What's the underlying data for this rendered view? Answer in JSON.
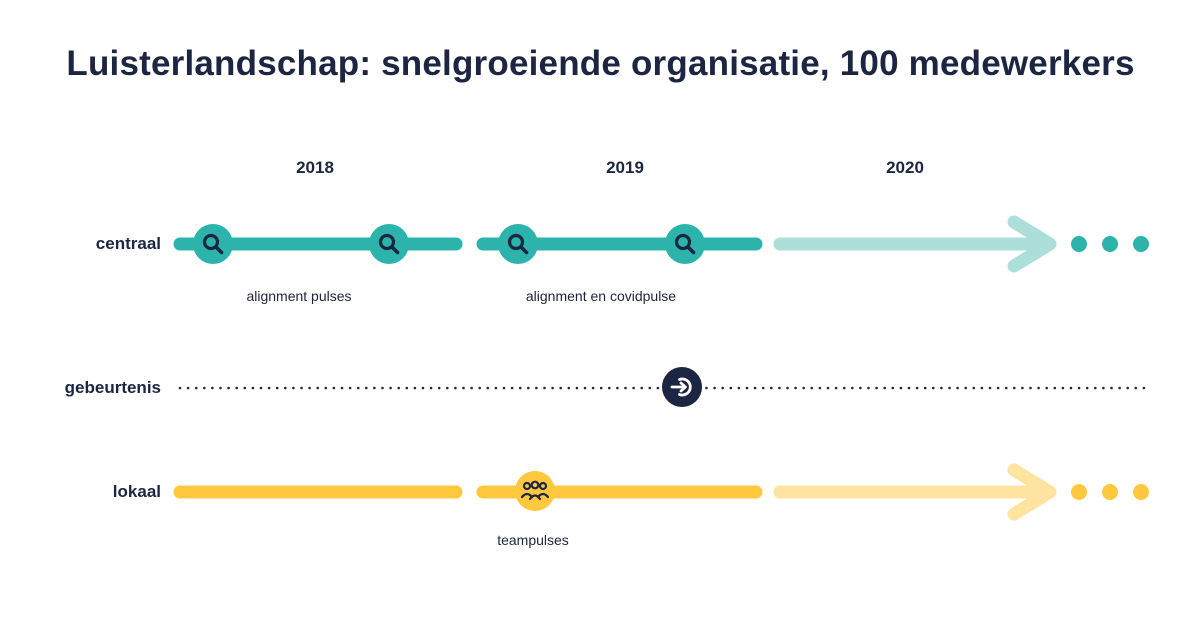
{
  "title": "Luisterlandschap: snelgroeiende organisatie, 100 medewerkers",
  "years": [
    "2018",
    "2019",
    "2020"
  ],
  "rows": {
    "centraal": {
      "label": "centraal",
      "color": "#2bb3ac",
      "light_color": "#acdfd9",
      "captions": [
        "alignment pulses",
        "alignment en covidpulse"
      ],
      "icons": [
        "search-icon",
        "search-icon",
        "search-icon",
        "search-icon"
      ]
    },
    "gebeurtenis": {
      "label": "gebeurtenis",
      "color": "#1c2541",
      "icon": "login-arrow-icon"
    },
    "lokaal": {
      "label": "lokaal",
      "color": "#ffc83d",
      "light_color": "#ffe4a0",
      "captions": [
        "teampulses"
      ],
      "icon": "team-icon"
    }
  }
}
